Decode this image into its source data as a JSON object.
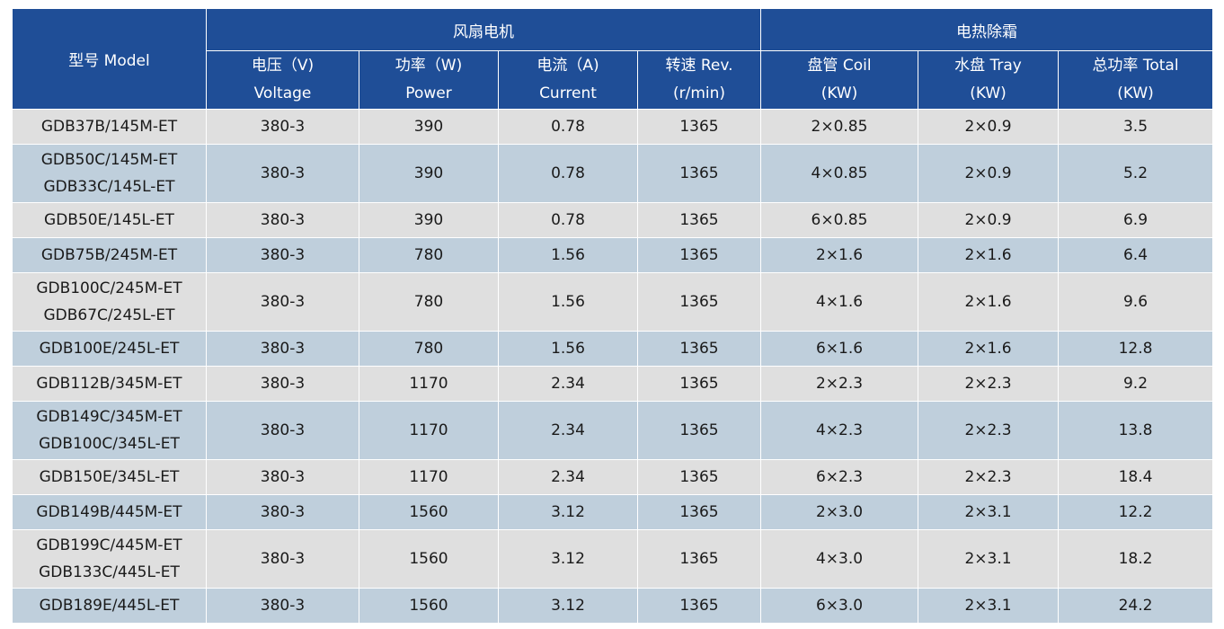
{
  "header": {
    "model": "型号 Model",
    "group_fan": "风扇电机",
    "group_defrost": "电热除霜",
    "voltage": [
      "电压（V)",
      "Voltage"
    ],
    "power": [
      "功率（W)",
      "Power"
    ],
    "current": [
      "电流（A)",
      "Current"
    ],
    "speed": [
      "转速 Rev.",
      "(r/min)"
    ],
    "coil": [
      "盘管 Coil",
      "(KW)"
    ],
    "tray": [
      "水盘 Tray",
      "(KW)"
    ],
    "total": [
      "总功率 Total",
      "(KW)"
    ]
  },
  "rows": [
    {
      "models": [
        "GDB37B/145M-ET"
      ],
      "voltage": "380-3",
      "power": "390",
      "current": "0.78",
      "speed": "1365",
      "coil": "2×0.85",
      "tray": "2×0.9",
      "total": "3.5"
    },
    {
      "models": [
        "GDB50C/145M-ET",
        "GDB33C/145L-ET"
      ],
      "voltage": "380-3",
      "power": "390",
      "current": "0.78",
      "speed": "1365",
      "coil": "4×0.85",
      "tray": "2×0.9",
      "total": "5.2"
    },
    {
      "models": [
        "GDB50E/145L-ET"
      ],
      "voltage": "380-3",
      "power": "390",
      "current": "0.78",
      "speed": "1365",
      "coil": "6×0.85",
      "tray": "2×0.9",
      "total": "6.9"
    },
    {
      "models": [
        "GDB75B/245M-ET"
      ],
      "voltage": "380-3",
      "power": "780",
      "current": "1.56",
      "speed": "1365",
      "coil": "2×1.6",
      "tray": "2×1.6",
      "total": "6.4"
    },
    {
      "models": [
        "GDB100C/245M-ET",
        "GDB67C/245L-ET"
      ],
      "voltage": "380-3",
      "power": "780",
      "current": "1.56",
      "speed": "1365",
      "coil": "4×1.6",
      "tray": "2×1.6",
      "total": "9.6"
    },
    {
      "models": [
        "GDB100E/245L-ET"
      ],
      "voltage": "380-3",
      "power": "780",
      "current": "1.56",
      "speed": "1365",
      "coil": "6×1.6",
      "tray": "2×1.6",
      "total": "12.8"
    },
    {
      "models": [
        "GDB112B/345M-ET"
      ],
      "voltage": "380-3",
      "power": "1170",
      "current": "2.34",
      "speed": "1365",
      "coil": "2×2.3",
      "tray": "2×2.3",
      "total": "9.2"
    },
    {
      "models": [
        "GDB149C/345M-ET",
        "GDB100C/345L-ET"
      ],
      "voltage": "380-3",
      "power": "1170",
      "current": "2.34",
      "speed": "1365",
      "coil": "4×2.3",
      "tray": "2×2.3",
      "total": "13.8"
    },
    {
      "models": [
        "GDB150E/345L-ET"
      ],
      "voltage": "380-3",
      "power": "1170",
      "current": "2.34",
      "speed": "1365",
      "coil": "6×2.3",
      "tray": "2×2.3",
      "total": "18.4"
    },
    {
      "models": [
        "GDB149B/445M-ET"
      ],
      "voltage": "380-3",
      "power": "1560",
      "current": "3.12",
      "speed": "1365",
      "coil": "2×3.0",
      "tray": "2×3.1",
      "total": "12.2"
    },
    {
      "models": [
        "GDB199C/445M-ET",
        "GDB133C/445L-ET"
      ],
      "voltage": "380-3",
      "power": "1560",
      "current": "3.12",
      "speed": "1365",
      "coil": "4×3.0",
      "tray": "2×3.1",
      "total": "18.2"
    },
    {
      "models": [
        "GDB189E/445L-ET"
      ],
      "voltage": "380-3",
      "power": "1560",
      "current": "3.12",
      "speed": "1365",
      "coil": "6×3.0",
      "tray": "2×3.1",
      "total": "24.2"
    }
  ],
  "colors": {
    "header_bg": "#1f4e97",
    "row_gray": "#dfdfdf",
    "row_blue": "#bfcfdc"
  }
}
